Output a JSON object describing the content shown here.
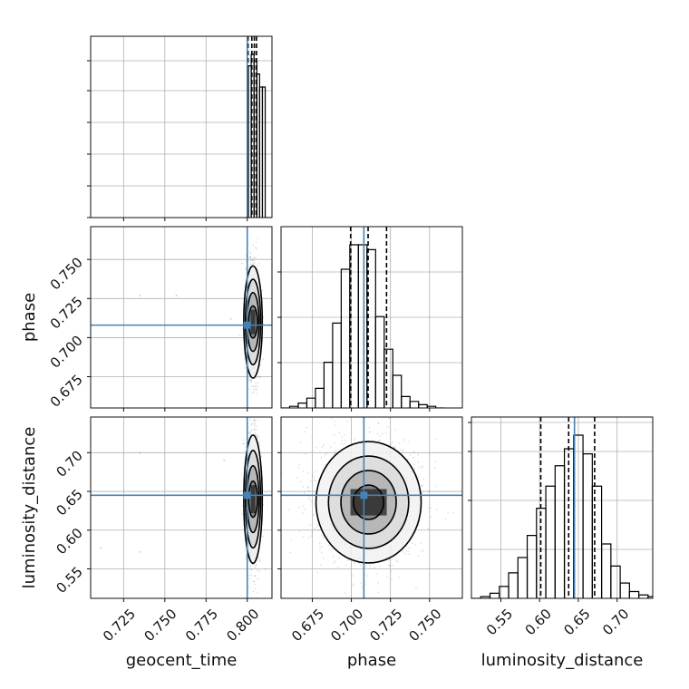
{
  "chart_data": {
    "type": "corner",
    "parameters": [
      {
        "name": "geocent_time",
        "range": [
          0.705,
          0.815
        ],
        "ticks": [
          0.725,
          0.75,
          0.775,
          0.8
        ],
        "tick_labels": [
          "0.725",
          "0.750",
          "0.775",
          "0.800"
        ],
        "truth": 0.8
      },
      {
        "name": "phase",
        "range": [
          0.655,
          0.771
        ],
        "ticks": [
          0.675,
          0.7,
          0.725,
          0.75
        ],
        "tick_labels": [
          "0.675",
          "0.700",
          "0.725",
          "0.750"
        ],
        "truth": 0.708
      },
      {
        "name": "luminosity_distance",
        "range": [
          0.512,
          0.746
        ],
        "ticks": [
          0.55,
          0.6,
          0.65,
          0.7
        ],
        "tick_labels": [
          "0.55",
          "0.60",
          "0.65",
          "0.70"
        ],
        "truth": 0.645
      }
    ],
    "truth_color": "#4682b4",
    "grid": true,
    "histograms": [
      {
        "parameter": "geocent_time",
        "bin_edges": [
          0.799,
          0.8007,
          0.8024,
          0.8041,
          0.8058,
          0.8075,
          0.8092,
          0.8109,
          0.815
        ],
        "counts": [
          0.0,
          0.93,
          1.0,
          0.96,
          0.88,
          0.8,
          0.8,
          0.0
        ],
        "quantiles": [
          0.8005,
          0.8028,
          0.8043,
          0.8056
        ]
      },
      {
        "parameter": "phase",
        "bin_edges": [
          0.655,
          0.6605,
          0.666,
          0.6715,
          0.677,
          0.6825,
          0.688,
          0.6935,
          0.699,
          0.7045,
          0.71,
          0.7155,
          0.721,
          0.7265,
          0.732,
          0.7375,
          0.743,
          0.7485,
          0.754,
          0.7595
        ],
        "counts": [
          0.0,
          0.01,
          0.03,
          0.06,
          0.12,
          0.28,
          0.52,
          0.85,
          1.0,
          1.0,
          0.97,
          0.56,
          0.36,
          0.2,
          0.07,
          0.04,
          0.02,
          0.01,
          0.0
        ],
        "quantiles": [
          0.6995,
          0.7107,
          0.7225
        ]
      },
      {
        "parameter": "luminosity_distance",
        "bin_edges": [
          0.512,
          0.524,
          0.536,
          0.548,
          0.56,
          0.572,
          0.584,
          0.596,
          0.608,
          0.62,
          0.632,
          0.644,
          0.656,
          0.668,
          0.68,
          0.692,
          0.704,
          0.716,
          0.728,
          0.74,
          0.746
        ],
        "counts": [
          0.0,
          0.01,
          0.03,
          0.07,
          0.15,
          0.24,
          0.37,
          0.53,
          0.66,
          0.78,
          0.88,
          0.96,
          0.85,
          0.66,
          0.32,
          0.19,
          0.09,
          0.04,
          0.02,
          0.01
        ],
        "quantiles": [
          0.6015,
          0.6375,
          0.671
        ]
      }
    ],
    "joint": [
      {
        "x": "geocent_time",
        "y": "phase",
        "center": [
          0.8035,
          0.71
        ],
        "sd": [
          0.0018,
          0.0155
        ],
        "corr": 0.0,
        "outliers": [
          [
            0.735,
            0.727
          ],
          [
            0.757,
            0.727
          ],
          [
            0.79,
            0.712
          ]
        ]
      },
      {
        "x": "geocent_time",
        "y": "luminosity_distance",
        "center": [
          0.8035,
          0.64
        ],
        "sd": [
          0.0018,
          0.036
        ],
        "corr": 0.0,
        "outliers": [
          [
            0.711,
            0.577
          ],
          [
            0.735,
            0.572
          ],
          [
            0.735,
            0.7
          ],
          [
            0.786,
            0.69
          ]
        ]
      },
      {
        "x": "phase",
        "y": "luminosity_distance",
        "center": [
          0.711,
          0.636
        ],
        "sd": [
          0.0145,
          0.034
        ],
        "corr": 0.0,
        "outliers": []
      }
    ],
    "contour_sigmas": [
      0.5,
      1.0,
      1.5,
      2.0
    ]
  }
}
